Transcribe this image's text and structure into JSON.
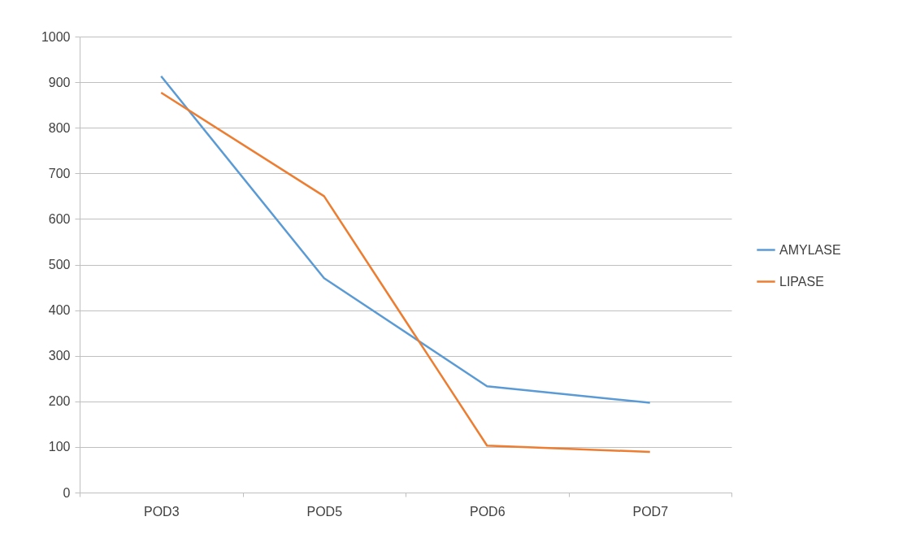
{
  "chart_data": {
    "type": "line",
    "categories": [
      "POD3",
      "POD5",
      "POD6",
      "POD7"
    ],
    "series": [
      {
        "name": "AMYLASE",
        "color": "#5b9bd5",
        "values": [
          913,
          470,
          233,
          197
        ]
      },
      {
        "name": "LIPASE",
        "color": "#ed7d31",
        "values": [
          877,
          650,
          103,
          89
        ]
      }
    ],
    "ylim": [
      0,
      1000
    ],
    "yticks": [
      0,
      100,
      200,
      300,
      400,
      500,
      600,
      700,
      800,
      900,
      1000
    ],
    "grid": "y",
    "legend": "right"
  }
}
